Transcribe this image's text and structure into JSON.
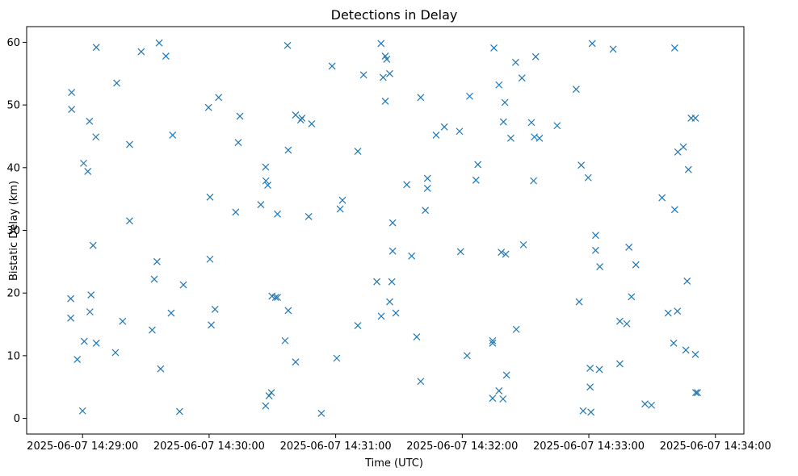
{
  "chart_data": {
    "type": "scatter",
    "title": "Detections in Delay",
    "xlabel": "Time (UTC)",
    "ylabel": "Bistatic Delay (km)",
    "x_unit": "seconds after 2025-06-07 14:28:00",
    "xlim": [
      33.5,
      373.5
    ],
    "ylim": [
      -2.5,
      62.5
    ],
    "x_ticks": [
      {
        "value": 60,
        "label": "2025-06-07 14:29:00"
      },
      {
        "value": 120,
        "label": "2025-06-07 14:30:00"
      },
      {
        "value": 180,
        "label": "2025-06-07 14:31:00"
      },
      {
        "value": 240,
        "label": "2025-06-07 14:32:00"
      },
      {
        "value": 300,
        "label": "2025-06-07 14:33:00"
      },
      {
        "value": 360,
        "label": "2025-06-07 14:34:00"
      }
    ],
    "y_ticks": [
      {
        "value": 0,
        "label": "0"
      },
      {
        "value": 10,
        "label": "10"
      },
      {
        "value": 20,
        "label": "20"
      },
      {
        "value": 30,
        "label": "30"
      },
      {
        "value": 40,
        "label": "40"
      },
      {
        "value": 50,
        "label": "50"
      },
      {
        "value": 60,
        "label": "60"
      }
    ],
    "marker": "x",
    "color": "#1f77b4",
    "series": [
      {
        "name": "detections",
        "points": [
          [
            54.4,
            19.1
          ],
          [
            54.4,
            16.0
          ],
          [
            54.8,
            52.0
          ],
          [
            54.8,
            49.3
          ],
          [
            57.5,
            9.4
          ],
          [
            60.0,
            1.2
          ],
          [
            60.5,
            40.7
          ],
          [
            60.8,
            12.3
          ],
          [
            62.5,
            39.4
          ],
          [
            63.3,
            47.4
          ],
          [
            63.5,
            17.0
          ],
          [
            64.0,
            19.7
          ],
          [
            65.0,
            27.6
          ],
          [
            66.3,
            44.9
          ],
          [
            66.5,
            59.2
          ],
          [
            66.5,
            12.0
          ],
          [
            75.6,
            10.5
          ],
          [
            76.2,
            53.5
          ],
          [
            79.0,
            15.5
          ],
          [
            82.3,
            43.7
          ],
          [
            82.3,
            31.5
          ],
          [
            87.8,
            58.5
          ],
          [
            93.0,
            14.1
          ],
          [
            94.0,
            22.2
          ],
          [
            95.3,
            25.0
          ],
          [
            96.3,
            59.9
          ],
          [
            97.0,
            7.9
          ],
          [
            99.5,
            57.8
          ],
          [
            102.0,
            16.8
          ],
          [
            102.7,
            45.2
          ],
          [
            106.0,
            1.1
          ],
          [
            107.8,
            21.3
          ],
          [
            119.7,
            49.6
          ],
          [
            120.4,
            35.3
          ],
          [
            120.4,
            25.4
          ],
          [
            121.0,
            14.9
          ],
          [
            122.8,
            17.4
          ],
          [
            124.5,
            51.2
          ],
          [
            132.6,
            32.9
          ],
          [
            133.8,
            44.0
          ],
          [
            134.6,
            48.2
          ],
          [
            144.5,
            34.1
          ],
          [
            146.8,
            2.0
          ],
          [
            146.8,
            40.1
          ],
          [
            146.9,
            37.9
          ],
          [
            147.8,
            37.2
          ],
          [
            148.4,
            3.6
          ],
          [
            149.5,
            4.1
          ],
          [
            149.8,
            19.5
          ],
          [
            151.5,
            19.3
          ],
          [
            152.4,
            19.3
          ],
          [
            152.4,
            32.6
          ],
          [
            156.0,
            12.4
          ],
          [
            157.2,
            59.5
          ],
          [
            157.5,
            42.8
          ],
          [
            157.5,
            17.2
          ],
          [
            161.0,
            9.0
          ],
          [
            161.0,
            48.4
          ],
          [
            163.4,
            47.6
          ],
          [
            164.0,
            47.9
          ],
          [
            167.2,
            32.2
          ],
          [
            168.6,
            47.0
          ],
          [
            173.2,
            0.8
          ],
          [
            178.3,
            56.2
          ],
          [
            180.5,
            9.6
          ],
          [
            182.1,
            33.4
          ],
          [
            183.2,
            34.8
          ],
          [
            190.5,
            14.8
          ],
          [
            190.5,
            42.6
          ],
          [
            193.2,
            54.8
          ],
          [
            199.5,
            21.8
          ],
          [
            201.5,
            59.8
          ],
          [
            201.6,
            16.3
          ],
          [
            202.5,
            54.4
          ],
          [
            203.5,
            57.8
          ],
          [
            203.5,
            50.6
          ],
          [
            204.2,
            57.3
          ],
          [
            205.6,
            18.6
          ],
          [
            205.6,
            55.0
          ],
          [
            206.6,
            21.8
          ],
          [
            207.0,
            31.2
          ],
          [
            207.0,
            26.7
          ],
          [
            208.5,
            16.8
          ],
          [
            213.7,
            37.3
          ],
          [
            216.0,
            25.9
          ],
          [
            218.4,
            13.0
          ],
          [
            220.3,
            5.9
          ],
          [
            220.3,
            51.2
          ],
          [
            222.5,
            33.2
          ],
          [
            223.5,
            38.3
          ],
          [
            223.5,
            36.7
          ],
          [
            227.6,
            45.2
          ],
          [
            231.5,
            46.5
          ],
          [
            238.7,
            45.8
          ],
          [
            239.2,
            26.6
          ],
          [
            242.3,
            10.0
          ],
          [
            243.5,
            51.4
          ],
          [
            246.5,
            38.0
          ],
          [
            247.4,
            40.5
          ],
          [
            254.4,
            3.2
          ],
          [
            254.4,
            12.0
          ],
          [
            254.4,
            12.4
          ],
          [
            255.0,
            59.1
          ],
          [
            257.4,
            4.4
          ],
          [
            257.4,
            53.2
          ],
          [
            258.5,
            26.5
          ],
          [
            259.3,
            3.1
          ],
          [
            259.5,
            47.3
          ],
          [
            260.2,
            50.4
          ],
          [
            260.6,
            26.2
          ],
          [
            261.0,
            6.9
          ],
          [
            263.0,
            44.7
          ],
          [
            265.3,
            56.8
          ],
          [
            265.6,
            14.2
          ],
          [
            268.3,
            54.3
          ],
          [
            269.0,
            27.7
          ],
          [
            272.8,
            47.2
          ],
          [
            273.8,
            37.9
          ],
          [
            274.2,
            44.9
          ],
          [
            274.8,
            57.7
          ],
          [
            276.6,
            44.7
          ],
          [
            285.0,
            46.7
          ],
          [
            294.0,
            52.5
          ],
          [
            295.4,
            18.6
          ],
          [
            296.4,
            40.4
          ],
          [
            297.3,
            1.2
          ],
          [
            299.7,
            38.4
          ],
          [
            300.6,
            8.0
          ],
          [
            300.6,
            5.0
          ],
          [
            301.0,
            1.0
          ],
          [
            301.6,
            59.8
          ],
          [
            303.2,
            29.2
          ],
          [
            303.2,
            26.8
          ],
          [
            305.0,
            7.8
          ],
          [
            305.2,
            24.2
          ],
          [
            311.5,
            58.9
          ],
          [
            314.7,
            15.5
          ],
          [
            314.7,
            8.7
          ],
          [
            318.0,
            15.1
          ],
          [
            319.0,
            27.3
          ],
          [
            320.2,
            19.4
          ],
          [
            322.3,
            24.5
          ],
          [
            326.6,
            2.3
          ],
          [
            329.7,
            2.1
          ],
          [
            334.7,
            35.2
          ],
          [
            337.6,
            16.8
          ],
          [
            340.2,
            12.0
          ],
          [
            340.7,
            59.1
          ],
          [
            340.7,
            33.3
          ],
          [
            342.0,
            17.1
          ],
          [
            342.2,
            42.5
          ],
          [
            344.8,
            43.3
          ],
          [
            346.0,
            10.9
          ],
          [
            346.6,
            21.9
          ],
          [
            347.2,
            39.7
          ],
          [
            348.5,
            47.9
          ],
          [
            350.5,
            47.9
          ],
          [
            350.5,
            10.2
          ],
          [
            350.7,
            4.1
          ],
          [
            351.5,
            4.1
          ]
        ]
      }
    ]
  }
}
